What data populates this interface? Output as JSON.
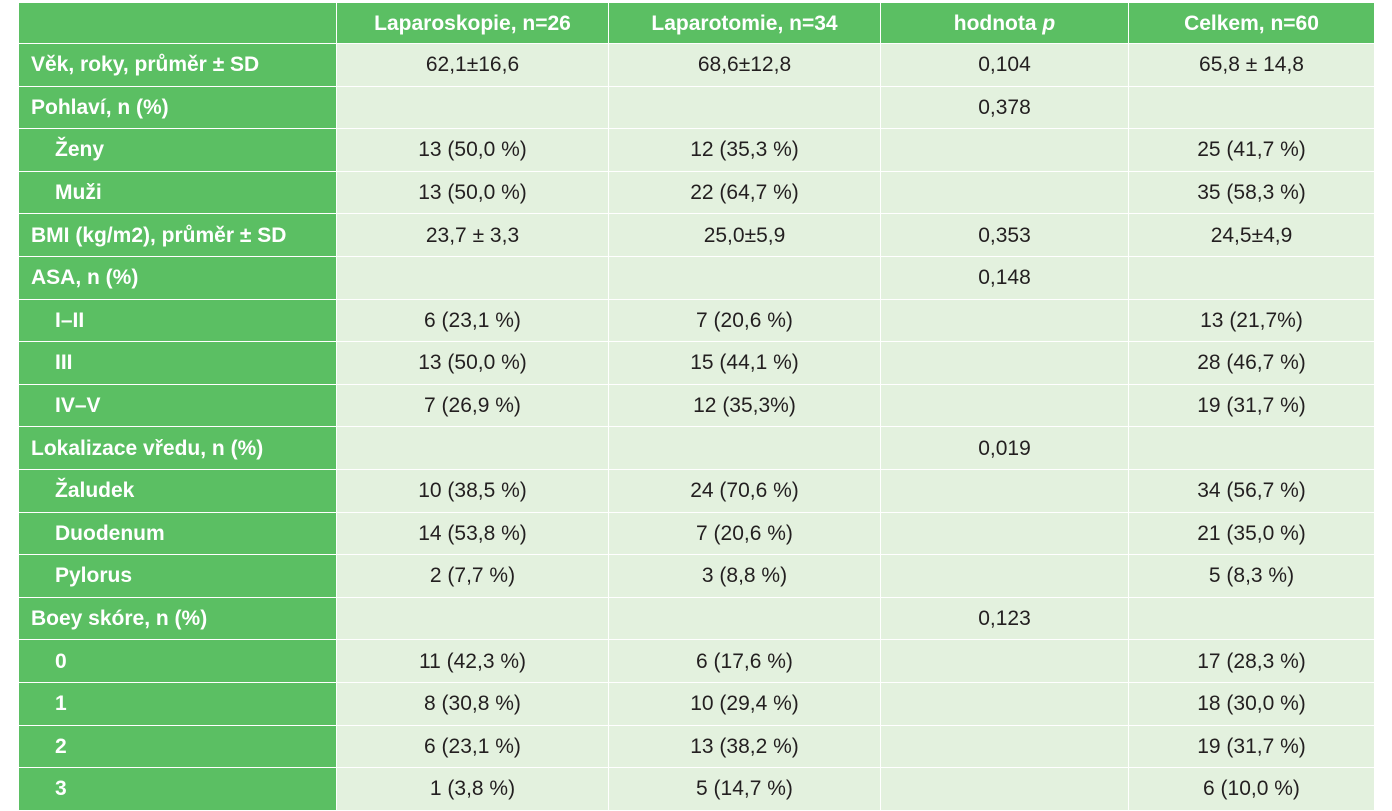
{
  "table": {
    "headers": {
      "col1": "Laparoskopie, n=26",
      "col2": "Laparotomie, n=34",
      "col3_prefix": "hodnota ",
      "col3_italic": "p",
      "col4": "Celkem, n=60"
    },
    "rows": [
      {
        "label": "Věk, roky, průměr ± SD",
        "sub": false,
        "cells": [
          "62,1±16,6",
          "68,6±12,8",
          "0,104",
          "65,8 ± 14,8"
        ]
      },
      {
        "label": "Pohlaví, n (%)",
        "sub": false,
        "cells": [
          "",
          "",
          "0,378",
          ""
        ]
      },
      {
        "label": "Ženy",
        "sub": true,
        "cells": [
          "13 (50,0 %)",
          "12 (35,3 %)",
          "",
          "25 (41,7 %)"
        ]
      },
      {
        "label": "Muži",
        "sub": true,
        "cells": [
          "13 (50,0 %)",
          "22 (64,7 %)",
          "",
          "35 (58,3  %)"
        ]
      },
      {
        "label": "BMI (kg/m2), průměr ± SD",
        "sub": false,
        "cells": [
          "23,7 ± 3,3",
          "25,0±5,9",
          "0,353",
          "24,5±4,9"
        ]
      },
      {
        "label": "ASA, n (%)",
        "sub": false,
        "cells": [
          "",
          "",
          "0,148",
          ""
        ]
      },
      {
        "label": "I–II",
        "sub": true,
        "cells": [
          "6 (23,1 %)",
          "7 (20,6 %)",
          "",
          "13 (21,7%)"
        ]
      },
      {
        "label": "III",
        "sub": true,
        "cells": [
          "13 (50,0 %)",
          "15 (44,1 %)",
          "",
          "28 (46,7 %)"
        ]
      },
      {
        "label": "IV–V",
        "sub": true,
        "cells": [
          "7 (26,9 %)",
          "12 (35,3%)",
          "",
          "19 (31,7 %)"
        ]
      },
      {
        "label": "Lokalizace vředu, n (%)",
        "sub": false,
        "cells": [
          "",
          "",
          "0,019",
          ""
        ]
      },
      {
        "label": "Žaludek",
        "sub": true,
        "cells": [
          "10 (38,5 %)",
          "24 (70,6 %)",
          "",
          "34 (56,7 %)"
        ]
      },
      {
        "label": "Duodenum",
        "sub": true,
        "cells": [
          "14 (53,8 %)",
          "7 (20,6 %)",
          "",
          "21 (35,0 %)"
        ]
      },
      {
        "label": "Pylorus",
        "sub": true,
        "cells": [
          "2 (7,7 %)",
          "3 (8,8 %)",
          "",
          "5 (8,3 %)"
        ]
      },
      {
        "label": "Boey skóre, n (%)",
        "sub": false,
        "cells": [
          "",
          "",
          "0,123",
          ""
        ]
      },
      {
        "label": "0",
        "sub": true,
        "cells": [
          "11 (42,3 %)",
          "6 (17,6 %)",
          "",
          "17 (28,3 %)"
        ]
      },
      {
        "label": "1",
        "sub": true,
        "cells": [
          "8 (30,8 %)",
          "10 (29,4 %)",
          "",
          "18 (30,0 %)"
        ]
      },
      {
        "label": "2",
        "sub": true,
        "cells": [
          "6 (23,1 %)",
          "13 (38,2 %)",
          "",
          "19 (31,7 %)"
        ]
      },
      {
        "label": "3",
        "sub": true,
        "cells": [
          "1 (3,8 %)",
          "5 (14,7 %)",
          "",
          "6 (10,0 %)"
        ]
      }
    ]
  },
  "colors": {
    "header_green": "#5bbf63",
    "cell_light_green": "#e3f1de",
    "text_dark": "#231f20",
    "text_white": "#ffffff"
  }
}
